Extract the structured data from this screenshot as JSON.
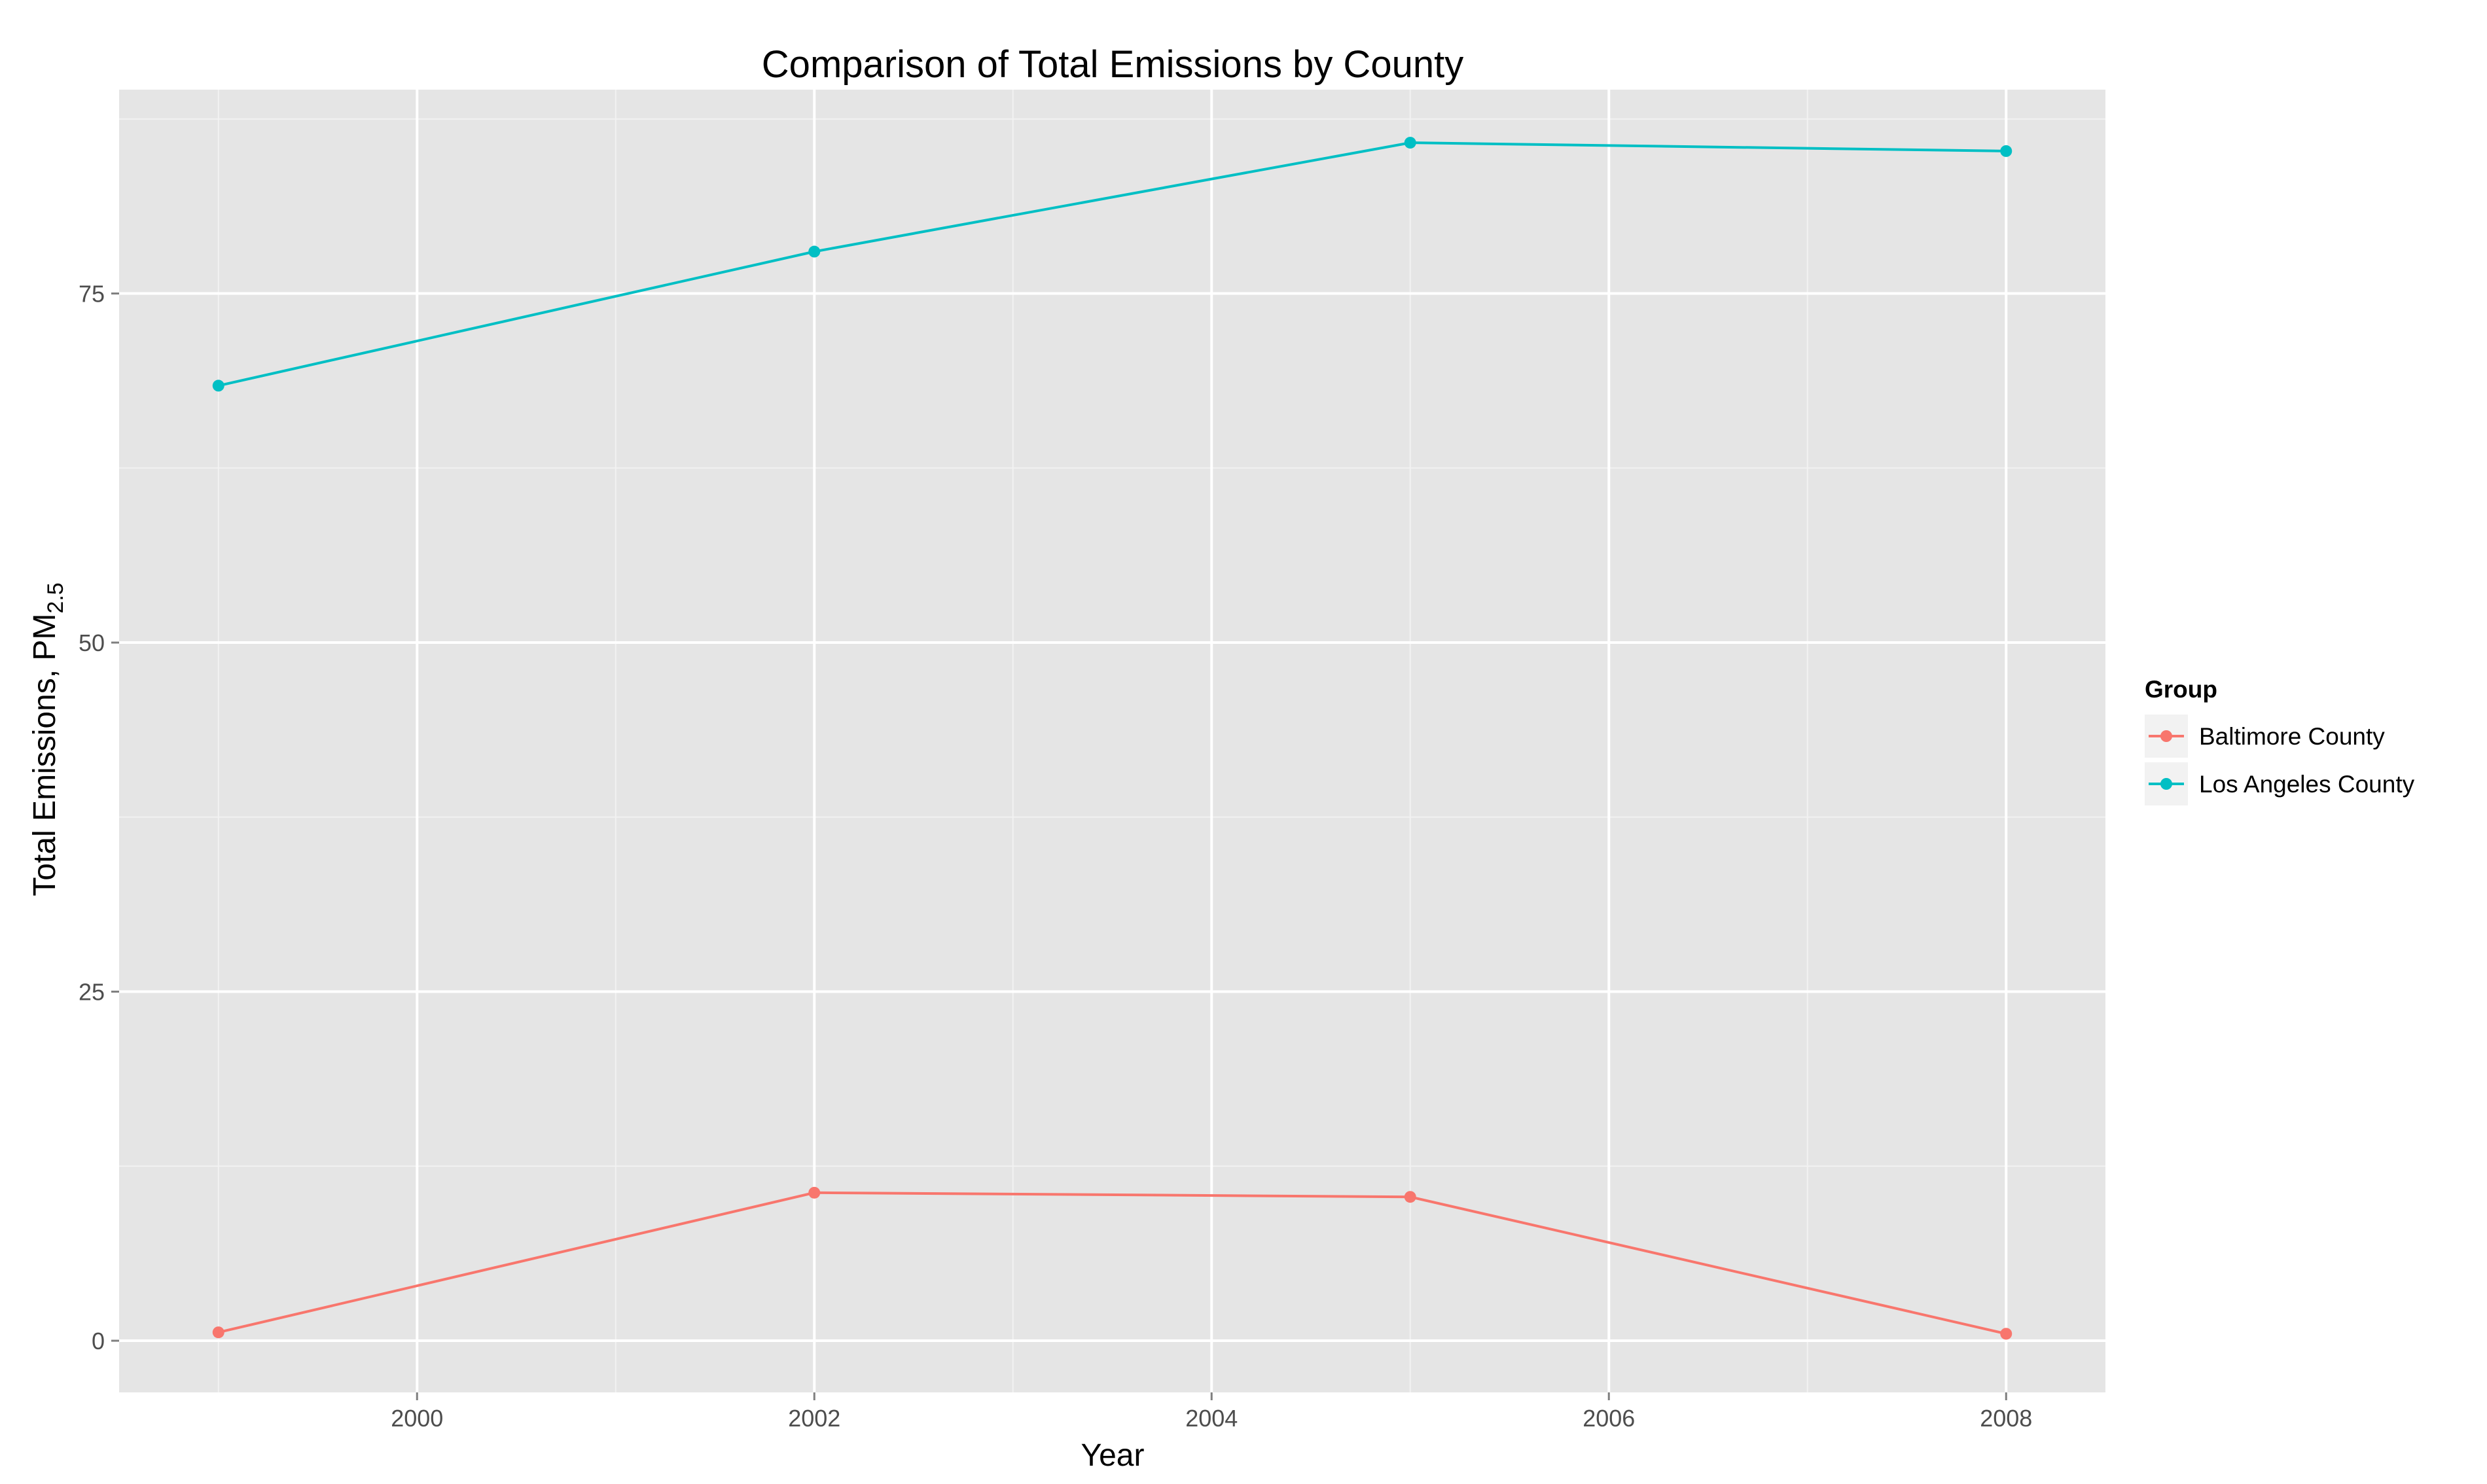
{
  "chart_data": {
    "type": "line",
    "title": "Comparison of Total Emissions by County",
    "xlabel": "Year",
    "ylabel": "Total Emissions, PM",
    "ylabel_subscript": "2.5",
    "x": [
      1999,
      2002,
      2005,
      2008
    ],
    "xlim": [
      1998.5,
      2008.5
    ],
    "ylim": [
      -3.7,
      89.6
    ],
    "x_ticks": [
      "2000",
      "2002",
      "2004",
      "2006",
      "2008"
    ],
    "y_ticks": [
      "0",
      "25",
      "50",
      "75"
    ],
    "grid": true,
    "legend_title": "Group",
    "legend_position": "right",
    "series": [
      {
        "name": "Baltimore County",
        "color": "#F8766D",
        "values": [
          0.6,
          10.6,
          10.3,
          0.5
        ]
      },
      {
        "name": "Los Angeles County",
        "color": "#00BFC4",
        "values": [
          68.4,
          78.0,
          85.8,
          85.2
        ]
      }
    ]
  }
}
